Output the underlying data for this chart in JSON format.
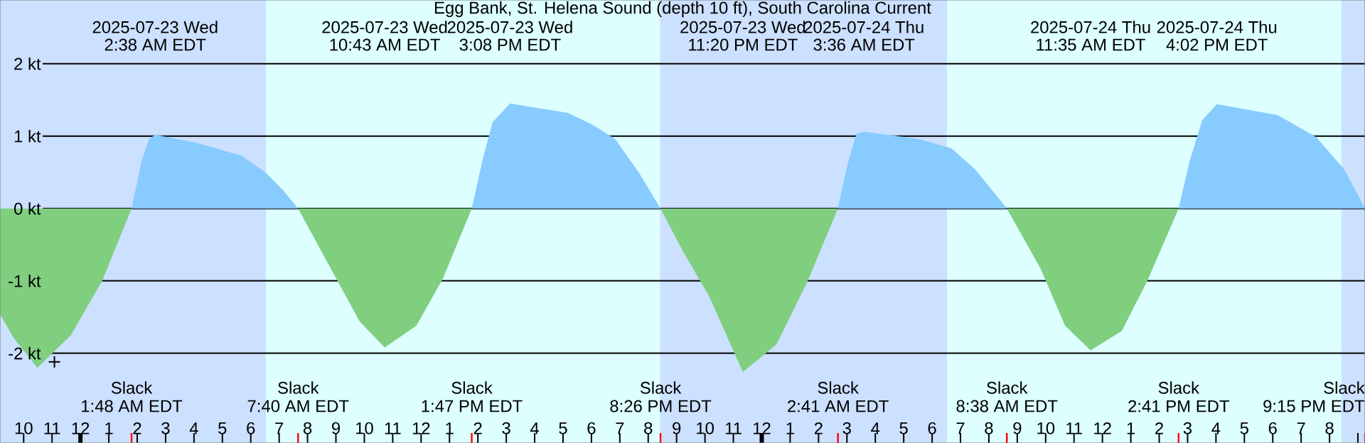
{
  "chart_data": {
    "type": "area",
    "title": "Egg Bank, St. Helena Sound (depth 10 ft), South Carolina Current",
    "xlim": [
      "2025-07-22T21:10",
      "2025-07-24T21:15"
    ],
    "ylim": [
      -3.24,
      2.88
    ],
    "xticks": [
      {
        "value": "2025-07-22T22:00",
        "label": "10"
      },
      {
        "value": "2025-07-22T23:00",
        "label": "11"
      },
      {
        "value": "2025-07-23T00:00",
        "label": "12"
      },
      {
        "value": "2025-07-23T01:00",
        "label": "1"
      },
      {
        "value": "2025-07-23T02:00",
        "label": "2"
      },
      {
        "value": "2025-07-23T03:00",
        "label": "3"
      },
      {
        "value": "2025-07-23T04:00",
        "label": "4"
      },
      {
        "value": "2025-07-23T05:00",
        "label": "5"
      },
      {
        "value": "2025-07-23T06:00",
        "label": "6"
      },
      {
        "value": "2025-07-23T07:00",
        "label": "7"
      },
      {
        "value": "2025-07-23T08:00",
        "label": "8"
      },
      {
        "value": "2025-07-23T09:00",
        "label": "9"
      },
      {
        "value": "2025-07-23T10:00",
        "label": "10"
      },
      {
        "value": "2025-07-23T11:00",
        "label": "11"
      },
      {
        "value": "2025-07-23T12:00",
        "label": "12"
      },
      {
        "value": "2025-07-23T13:00",
        "label": "1"
      },
      {
        "value": "2025-07-23T14:00",
        "label": "2"
      },
      {
        "value": "2025-07-23T15:00",
        "label": "3"
      },
      {
        "value": "2025-07-23T16:00",
        "label": "4"
      },
      {
        "value": "2025-07-23T17:00",
        "label": "5"
      },
      {
        "value": "2025-07-23T18:00",
        "label": "6"
      },
      {
        "value": "2025-07-23T19:00",
        "label": "7"
      },
      {
        "value": "2025-07-23T20:00",
        "label": "8"
      },
      {
        "value": "2025-07-23T21:00",
        "label": "9"
      },
      {
        "value": "2025-07-23T22:00",
        "label": "10"
      },
      {
        "value": "2025-07-23T23:00",
        "label": "11"
      },
      {
        "value": "2025-07-24T00:00",
        "label": "12"
      },
      {
        "value": "2025-07-24T01:00",
        "label": "1"
      },
      {
        "value": "2025-07-24T02:00",
        "label": "2"
      },
      {
        "value": "2025-07-24T03:00",
        "label": "3"
      },
      {
        "value": "2025-07-24T04:00",
        "label": "4"
      },
      {
        "value": "2025-07-24T05:00",
        "label": "5"
      },
      {
        "value": "2025-07-24T06:00",
        "label": "6"
      },
      {
        "value": "2025-07-24T07:00",
        "label": "7"
      },
      {
        "value": "2025-07-24T08:00",
        "label": "8"
      },
      {
        "value": "2025-07-24T09:00",
        "label": "9"
      },
      {
        "value": "2025-07-24T10:00",
        "label": "10"
      },
      {
        "value": "2025-07-24T11:00",
        "label": "11"
      },
      {
        "value": "2025-07-24T12:00",
        "label": "12"
      },
      {
        "value": "2025-07-24T13:00",
        "label": "1"
      },
      {
        "value": "2025-07-24T14:00",
        "label": "2"
      },
      {
        "value": "2025-07-24T15:00",
        "label": "3"
      },
      {
        "value": "2025-07-24T16:00",
        "label": "4"
      },
      {
        "value": "2025-07-24T17:00",
        "label": "5"
      },
      {
        "value": "2025-07-24T18:00",
        "label": "6"
      },
      {
        "value": "2025-07-24T19:00",
        "label": "7"
      },
      {
        "value": "2025-07-24T20:00",
        "label": "8"
      },
      {
        "value": "2025-07-24T21:00",
        "label": null
      }
    ],
    "yticks": [
      {
        "value": 2,
        "label": "2 kt"
      },
      {
        "value": 1,
        "label": "1 kt"
      },
      {
        "value": 0,
        "label": "0 kt"
      },
      {
        "value": -1,
        "label": "-1 kt"
      },
      {
        "value": -2,
        "label": "-2 kt"
      }
    ],
    "grid": "y",
    "bands": [
      {
        "axis": "x",
        "from": "2025-07-22T21:10",
        "to": "2025-07-23T06:32",
        "color": "#cce0ff"
      },
      {
        "axis": "x",
        "from": "2025-07-23T06:32",
        "to": "2025-07-23T20:25",
        "color": "#ddffff"
      },
      {
        "axis": "x",
        "from": "2025-07-23T20:25",
        "to": "2025-07-24T06:32",
        "color": "#cce0ff"
      },
      {
        "axis": "x",
        "from": "2025-07-24T06:32",
        "to": "2025-07-24T20:25",
        "color": "#ddffff"
      },
      {
        "axis": "x",
        "from": "2025-07-24T20:25",
        "to": "2025-07-24T21:15",
        "color": "#cce0ff"
      }
    ],
    "x": [
      "2025-07-22T21:10",
      "2025-07-22T21:40",
      "2025-07-22T22:29",
      "2025-07-22T23:40",
      "2025-07-23T00:46",
      "2025-07-23T01:48",
      "2025-07-23T02:10",
      "2025-07-23T02:25",
      "2025-07-23T02:38",
      "2025-07-23T04:10",
      "2025-07-23T05:40",
      "2025-07-23T06:31",
      "2025-07-23T07:10",
      "2025-07-23T07:40",
      "2025-07-23T08:50",
      "2025-07-23T09:50",
      "2025-07-23T10:43",
      "2025-07-23T11:50",
      "2025-07-23T12:46",
      "2025-07-23T13:47",
      "2025-07-23T14:10",
      "2025-07-23T14:31",
      "2025-07-23T15:08",
      "2025-07-23T17:10",
      "2025-07-23T18:01",
      "2025-07-23T18:50",
      "2025-07-23T19:40",
      "2025-07-23T20:26",
      "2025-07-23T21:10",
      "2025-07-23T22:10",
      "2025-07-23T23:20",
      "2025-07-24T00:31",
      "2025-07-24T01:35",
      "2025-07-24T02:41",
      "2025-07-24T03:01",
      "2025-07-24T03:20",
      "2025-07-24T03:36",
      "2025-07-24T05:31",
      "2025-07-24T06:41",
      "2025-07-24T07:31",
      "2025-07-24T08:38",
      "2025-07-24T09:50",
      "2025-07-24T10:41",
      "2025-07-24T11:35",
      "2025-07-24T12:41",
      "2025-07-24T13:35",
      "2025-07-24T14:41",
      "2025-07-24T15:05",
      "2025-07-24T15:31",
      "2025-07-24T16:02",
      "2025-07-24T18:10",
      "2025-07-24T19:31",
      "2025-07-24T20:31",
      "2025-07-24T21:15"
    ],
    "series": [
      {
        "color": "#87cbff",
        "values": [
          null,
          null,
          null,
          null,
          null,
          0,
          0.67,
          0.96,
          1.02,
          0.9,
          0.73,
          0.5,
          0.24,
          0,
          null,
          null,
          null,
          null,
          null,
          0,
          0.67,
          1.19,
          1.45,
          1.32,
          1.16,
          0.96,
          0.5,
          0,
          null,
          null,
          null,
          null,
          null,
          0,
          0.6,
          1.03,
          1.06,
          0.96,
          0.83,
          0.54,
          0,
          null,
          null,
          null,
          null,
          null,
          0,
          0.67,
          1.22,
          1.44,
          1.29,
          0.99,
          0.54,
          0
        ]
      },
      {
        "color": "#7fcf7f",
        "values": [
          -1.46,
          -1.8,
          -2.2,
          -1.75,
          -1.0,
          0,
          null,
          null,
          null,
          null,
          null,
          null,
          null,
          0,
          -0.84,
          -1.56,
          -1.92,
          -1.62,
          -0.97,
          0,
          null,
          null,
          null,
          null,
          null,
          null,
          null,
          0,
          -0.55,
          -1.23,
          -2.26,
          -1.88,
          -1.03,
          0,
          null,
          null,
          null,
          null,
          null,
          null,
          0,
          -0.84,
          -1.62,
          -1.96,
          -1.69,
          -1.0,
          0,
          null,
          null,
          null,
          null,
          null,
          null,
          null
        ]
      },
      {
        "type": "scatter",
        "marker": "cross",
        "color": "#000000",
        "x": [
          "2025-07-22T23:05"
        ],
        "values": [
          -2.12
        ]
      }
    ],
    "annotations": [
      "2025-07-23 Wed",
      "2:38 AM EDT",
      "2025-07-23 Wed",
      "10:43 AM EDT",
      "2025-07-23 Wed",
      "3:08 PM EDT",
      "2025-07-23 Wed",
      "11:20 PM EDT",
      "2025-07-24 Thu",
      "3:36 AM EDT",
      "2025-07-24 Thu",
      "11:35 AM EDT",
      "2025-07-24 Thu",
      "4:02 PM EDT",
      "Slack",
      "1:48 AM EDT",
      "Slack",
      "7:40 AM EDT",
      "Slack",
      "1:47 PM EDT",
      "Slack",
      "8:26 PM EDT",
      "Slack",
      "2:41 AM EDT",
      "Slack",
      "8:38 AM EDT",
      "Slack",
      "2:41 PM EDT",
      "Slack",
      "9:15 PM EDT"
    ]
  }
}
